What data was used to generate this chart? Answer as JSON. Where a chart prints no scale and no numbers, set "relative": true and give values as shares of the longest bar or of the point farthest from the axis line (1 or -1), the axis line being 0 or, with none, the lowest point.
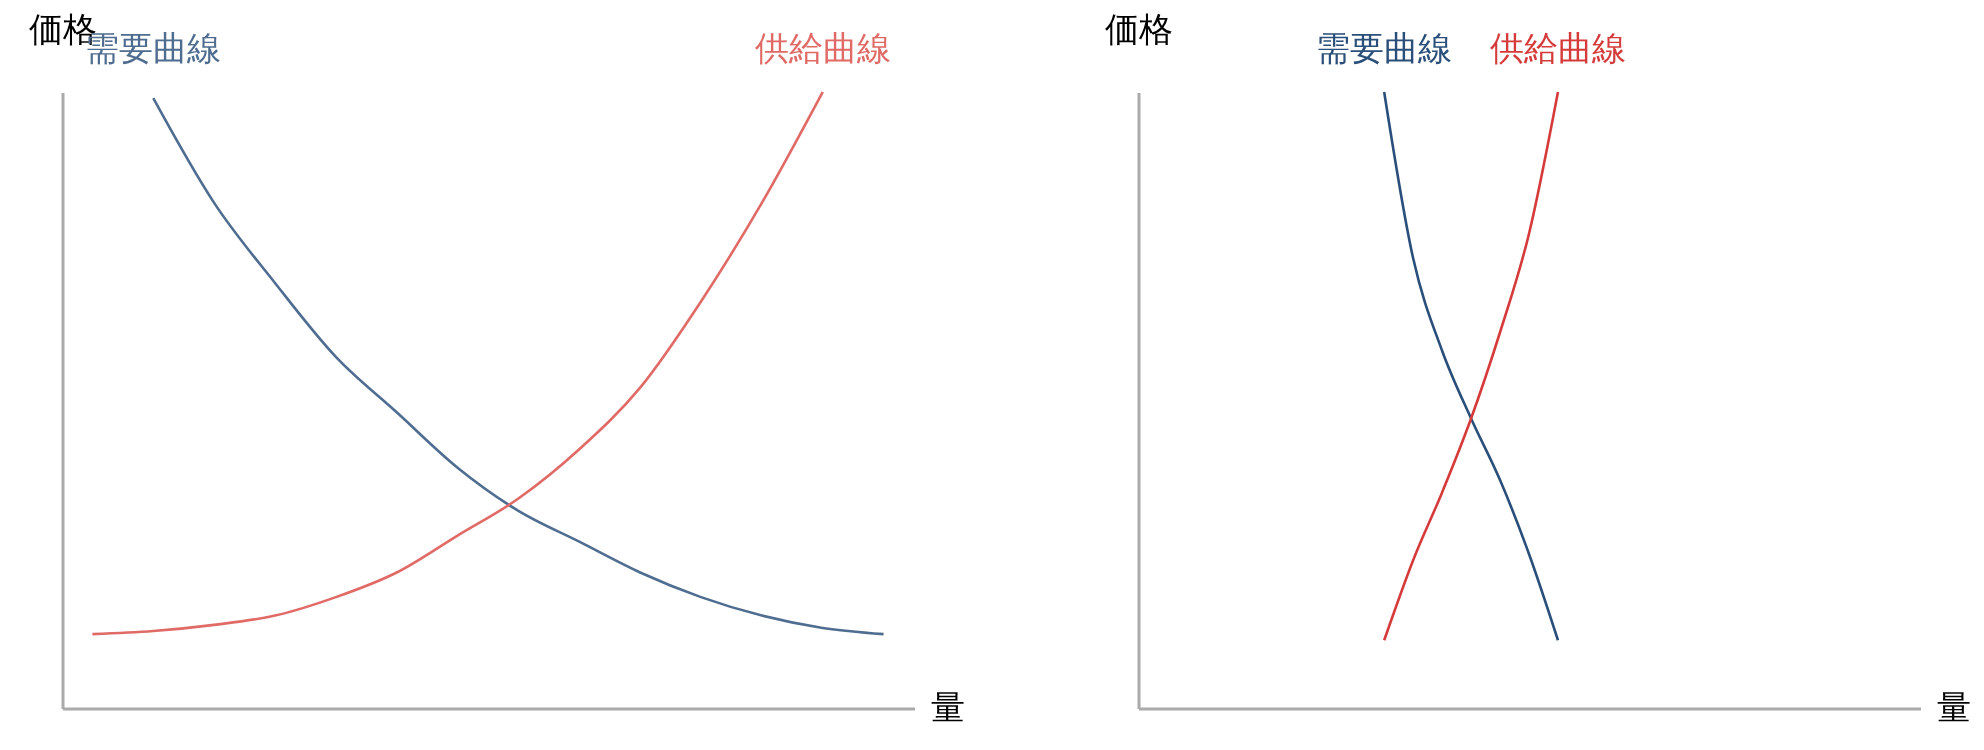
{
  "chart_data": [
    {
      "type": "line",
      "relative": true,
      "ylabel": "価格",
      "xlabel": "量",
      "tick_labels": false,
      "grid": false,
      "legend": false,
      "line_style": "solid",
      "marker": "none",
      "categories": [
        null,
        null,
        null,
        null,
        null,
        null,
        null,
        null,
        null,
        null,
        null,
        null,
        null,
        null
      ],
      "series": [
        {
          "name": "需要曲線",
          "color": "#4f6d90",
          "values": [
            null,
            0.99,
            0.82,
            0.69,
            0.57,
            0.48,
            0.39,
            0.32,
            0.27,
            0.22,
            0.18,
            0.15,
            0.13,
            0.12
          ]
        },
        {
          "name": "供給曲線",
          "color": "#e06a66",
          "values": [
            0.12,
            0.125,
            0.135,
            0.15,
            0.18,
            0.22,
            0.28,
            0.34,
            0.42,
            0.52,
            0.66,
            0.82,
            1.0,
            null
          ]
        }
      ]
    },
    {
      "type": "line",
      "relative": true,
      "ylabel": "価格",
      "xlabel": "量",
      "tick_labels": false,
      "grid": false,
      "legend": false,
      "line_style": "solid",
      "marker": "none",
      "categories": [
        null,
        null,
        null,
        null,
        null,
        null,
        null,
        null,
        null,
        null,
        null,
        null,
        null,
        null,
        null,
        null,
        null,
        null,
        null,
        null,
        null,
        null,
        null,
        null,
        null,
        null,
        null
      ],
      "series": [
        {
          "name": "需要曲線",
          "color": "#2a4f7a",
          "values": [
            null,
            null,
            null,
            null,
            null,
            null,
            null,
            null,
            1.0,
            0.73,
            0.58,
            0.47,
            0.37,
            0.25,
            0.11,
            null,
            null,
            null,
            null,
            null,
            null,
            null,
            null,
            null,
            null,
            null,
            null
          ]
        },
        {
          "name": "供給曲線",
          "color": "#d63b3b",
          "values": [
            null,
            null,
            null,
            null,
            null,
            null,
            null,
            null,
            0.11,
            0.24,
            0.35,
            0.47,
            0.61,
            0.77,
            1.0,
            null,
            null,
            null,
            null,
            null,
            null,
            null,
            null,
            null,
            null,
            null,
            null
          ]
        }
      ]
    }
  ]
}
